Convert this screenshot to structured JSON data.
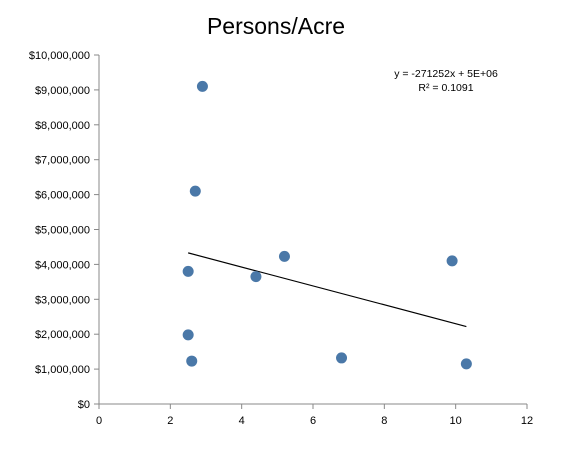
{
  "chart_data": {
    "type": "scatter",
    "title": "Persons/Acre",
    "xlabel": "",
    "ylabel": "",
    "xlim": [
      0,
      12
    ],
    "ylim": [
      0,
      10000000
    ],
    "x_ticks": [
      0,
      2,
      4,
      6,
      8,
      10,
      12
    ],
    "x_tick_labels": [
      "0",
      "2",
      "4",
      "6",
      "8",
      "10",
      "12"
    ],
    "y_ticks": [
      0,
      1000000,
      2000000,
      3000000,
      4000000,
      5000000,
      6000000,
      7000000,
      8000000,
      9000000,
      10000000
    ],
    "y_tick_labels": [
      "$0",
      "$1,000,000",
      "$2,000,000",
      "$3,000,000",
      "$4,000,000",
      "$5,000,000",
      "$6,000,000",
      "$7,000,000",
      "$8,000,000",
      "$9,000,000",
      "$10,000,000"
    ],
    "grid": false,
    "points": [
      {
        "x": 2.9,
        "y": 9100000
      },
      {
        "x": 2.7,
        "y": 6100000
      },
      {
        "x": 5.2,
        "y": 4230000
      },
      {
        "x": 9.9,
        "y": 4100000
      },
      {
        "x": 2.5,
        "y": 3800000
      },
      {
        "x": 4.4,
        "y": 3650000
      },
      {
        "x": 2.5,
        "y": 1980000
      },
      {
        "x": 2.6,
        "y": 1230000
      },
      {
        "x": 6.8,
        "y": 1320000
      },
      {
        "x": 10.3,
        "y": 1150000
      }
    ],
    "trendline": {
      "type": "linear",
      "x_range": [
        2.5,
        10.3
      ],
      "y_values": [
        4330000,
        2220000
      ],
      "equation": "y = -271252x + 5E+06",
      "r_squared": "R² = 0.1091"
    },
    "marker_color": "#4a78a8",
    "trendline_color": "#000000"
  }
}
